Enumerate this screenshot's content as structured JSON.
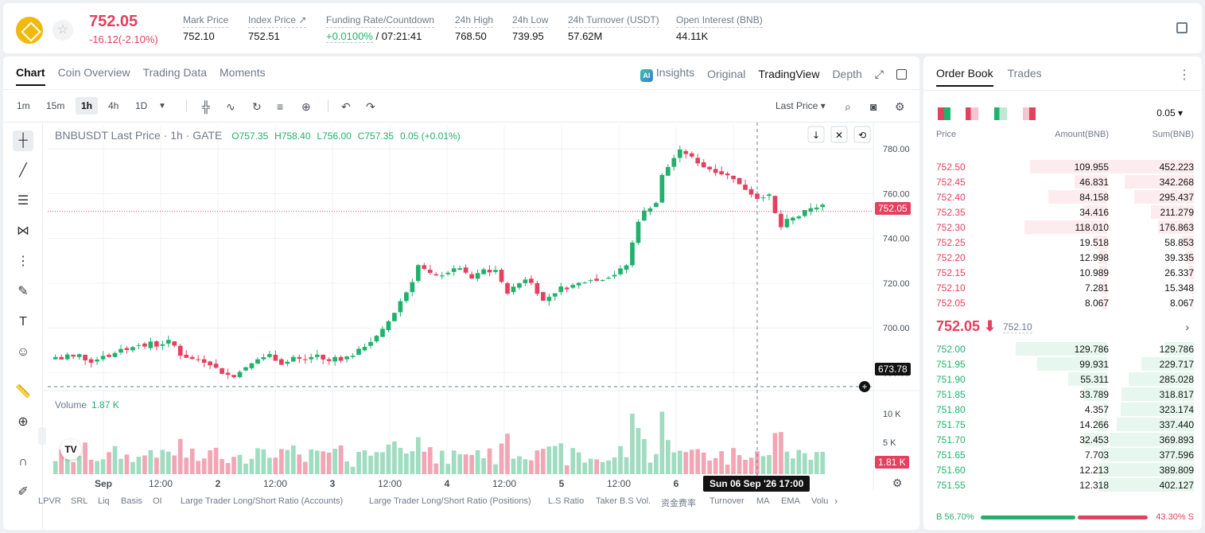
{
  "header": {
    "last_price": "752.05",
    "change": "-16.12(-2.10%)",
    "stats": [
      {
        "label": "Mark Price",
        "value": "752.10"
      },
      {
        "label": "Index Price ↗",
        "value": "752.51"
      },
      {
        "label": "Funding Rate/Countdown",
        "value_green": "+0.0100%",
        "value": " / 07:21:41"
      },
      {
        "label": "24h High",
        "value": "768.50"
      },
      {
        "label": "24h Low",
        "value": "739.95"
      },
      {
        "label": "24h Turnover (USDT)",
        "value": "57.62M"
      },
      {
        "label": "Open Interest (BNB)",
        "value": "44.11K"
      }
    ]
  },
  "chart_tabs": [
    "Chart",
    "Coin Overview",
    "Trading Data",
    "Moments"
  ],
  "view_tabs": {
    "insights": "Insights",
    "original": "Original",
    "tradingview": "TradingView",
    "depth": "Depth",
    "ai": "AI"
  },
  "toolbar": {
    "intervals": [
      "1m",
      "15m",
      "1h",
      "4h",
      "1D"
    ],
    "active": "1h",
    "price_type": "Last Price ▾"
  },
  "chart_header": {
    "symbol": "BNBUSDT Last Price · 1h · GATE",
    "o": "O757.35",
    "h": "H758.40",
    "l": "L756.00",
    "c": "C757.35",
    "chg": "0.05 (+0.01%)"
  },
  "volume": {
    "label": "Volume",
    "value": "1.87 K",
    "last_tag": "1.81 K"
  },
  "price_tags": {
    "last": "752.05",
    "crosshair": "673.78"
  },
  "crosshair_date": "Sun 06 Sep '26   17:00",
  "indicators": [
    "LPVR",
    "SRL",
    "Liq",
    "Basis",
    "OI",
    "Large Trader Long/Short Ratio (Accounts)",
    "Large Trader Long/Short Ratio (Positions)",
    "L.S Ratio",
    "Taker B.S Vol.",
    "资金费率",
    "Turnover",
    "MA",
    "EMA",
    "Volu"
  ],
  "chart_data": {
    "type": "bar",
    "title": "BNBUSDT Last Price · 1h · GATE",
    "subtype": "candlestick",
    "x_ticks": [
      "Sep",
      "12:00",
      "2",
      "12:00",
      "3",
      "12:00",
      "4",
      "12:00",
      "5",
      "12:00",
      "6",
      "12:00"
    ],
    "y_ticks": [
      780.0,
      760.0,
      740.0,
      720.0,
      700.0,
      680.0
    ],
    "ylim": [
      672,
      790
    ],
    "volume_ticks": [
      "10 K",
      "5 K"
    ],
    "price_path": [
      687,
      686,
      688,
      687,
      688,
      686,
      685,
      686,
      688,
      687,
      689,
      691,
      690,
      692,
      693,
      691,
      694,
      692,
      693,
      694,
      692,
      688,
      687,
      686,
      686,
      685,
      684,
      682,
      680,
      679,
      678,
      681,
      682,
      684,
      686,
      687,
      688,
      686,
      684,
      685,
      687,
      686,
      686,
      687,
      688,
      686,
      685,
      687,
      686,
      687,
      688,
      690,
      692,
      694,
      696,
      699,
      703,
      707,
      712,
      716,
      721,
      728,
      726,
      724,
      723,
      724,
      725,
      726,
      727,
      724,
      722,
      724,
      726,
      725,
      726,
      720,
      716,
      718,
      720,
      722,
      720,
      716,
      712,
      714,
      716,
      718,
      718,
      719,
      720,
      721,
      722,
      721,
      722,
      723,
      724,
      726,
      728,
      738,
      748,
      752,
      754,
      756,
      768,
      772,
      776,
      779,
      778,
      776,
      774,
      772,
      771,
      770,
      769,
      768,
      767,
      764,
      762,
      760,
      758,
      759,
      759,
      751,
      745,
      748,
      749,
      750,
      752,
      753,
      754,
      755
    ]
  },
  "orderbook": {
    "tabs": [
      "Order Book",
      "Trades"
    ],
    "tick": "0.05 ▾",
    "headers": {
      "price": "Price",
      "amount": "Amount(BNB)",
      "sum": "Sum(BNB)"
    },
    "asks": [
      {
        "price": "752.50",
        "amount": "109.955",
        "sum": "452.223",
        "depth": 1.0
      },
      {
        "price": "752.45",
        "amount": "46.831",
        "sum": "342.268",
        "depth": 0.76
      },
      {
        "price": "752.40",
        "amount": "84.158",
        "sum": "295.437",
        "depth": 0.65
      },
      {
        "price": "752.35",
        "amount": "34.416",
        "sum": "211.279",
        "depth": 0.47
      },
      {
        "price": "752.30",
        "amount": "118.010",
        "sum": "176.863",
        "depth": 0.39
      },
      {
        "price": "752.25",
        "amount": "19.518",
        "sum": "58.853",
        "depth": 0.13
      },
      {
        "price": "752.20",
        "amount": "12.998",
        "sum": "39.335",
        "depth": 0.09
      },
      {
        "price": "752.15",
        "amount": "10.989",
        "sum": "26.337",
        "depth": 0.06
      },
      {
        "price": "752.10",
        "amount": "7.281",
        "sum": "15.348",
        "depth": 0.03
      },
      {
        "price": "752.05",
        "amount": "8.067",
        "sum": "8.067",
        "depth": 0.02
      }
    ],
    "mid_price": "752.05 ⬇",
    "mid_ref": "752.10",
    "bids": [
      {
        "price": "752.00",
        "amount": "129.786",
        "sum": "129.786",
        "depth": 0.32
      },
      {
        "price": "751.95",
        "amount": "99.931",
        "sum": "229.717",
        "depth": 0.57
      },
      {
        "price": "751.90",
        "amount": "55.311",
        "sum": "285.028",
        "depth": 0.71
      },
      {
        "price": "751.85",
        "amount": "33.789",
        "sum": "318.817",
        "depth": 0.79
      },
      {
        "price": "751.80",
        "amount": "4.357",
        "sum": "323.174",
        "depth": 0.8
      },
      {
        "price": "751.75",
        "amount": "14.266",
        "sum": "337.440",
        "depth": 0.84
      },
      {
        "price": "751.70",
        "amount": "32.453",
        "sum": "369.893",
        "depth": 0.92
      },
      {
        "price": "751.65",
        "amount": "7.703",
        "sum": "377.596",
        "depth": 0.94
      },
      {
        "price": "751.60",
        "amount": "12.213",
        "sum": "389.809",
        "depth": 0.97
      },
      {
        "price": "751.55",
        "amount": "12.318",
        "sum": "402.127",
        "depth": 1.0
      }
    ],
    "buy_ratio": "B 56.70%",
    "sell_ratio": "43.30% S",
    "buy_pct": 56.7
  },
  "colors": {
    "red": "#e4405f",
    "green": "#20b26c",
    "brand": "#f0b90b"
  }
}
